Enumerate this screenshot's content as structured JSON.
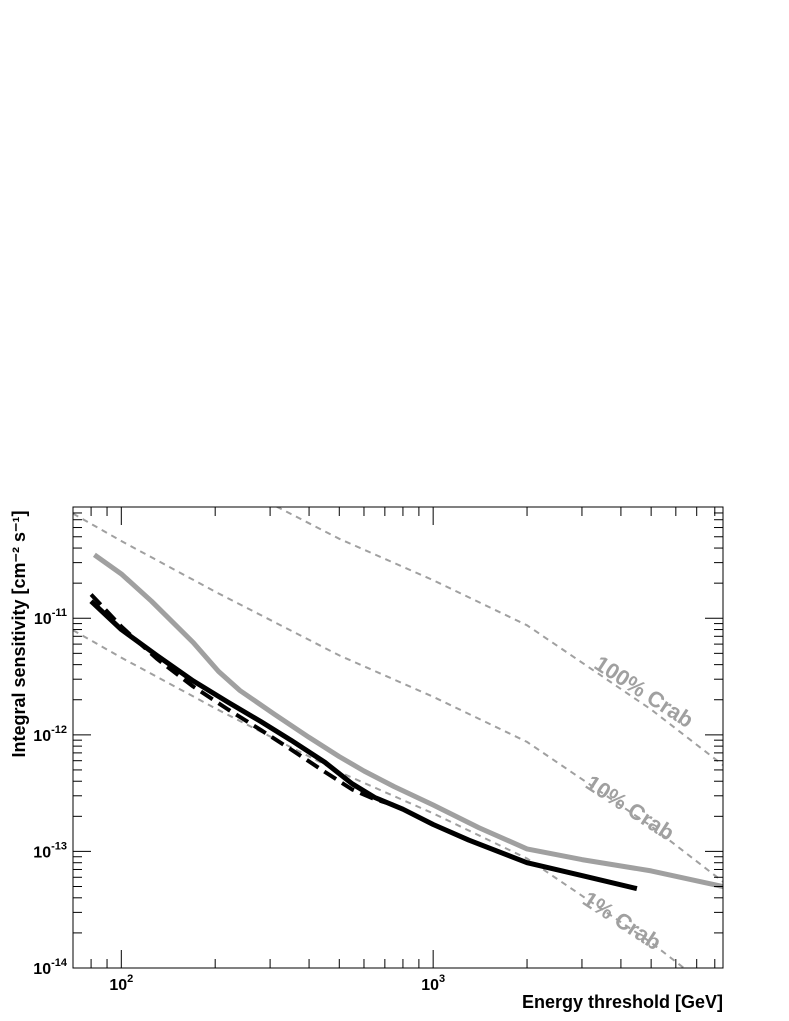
{
  "chart_data": {
    "type": "line",
    "xlabel": "Energy threshold [GeV]",
    "ylabel": "Integral sensitivity [cm⁻² s⁻¹]",
    "xscale": "log",
    "yscale": "log",
    "xlim": [
      70,
      8500
    ],
    "ylim": [
      1e-14,
      9e-11
    ],
    "x_tick_labels": [
      {
        "value": 100,
        "base": "10",
        "exp": "2"
      },
      {
        "value": 1000,
        "base": "10",
        "exp": "3"
      }
    ],
    "y_tick_labels": [
      {
        "value": 1e-14,
        "base": "10",
        "exp": "-14"
      },
      {
        "value": 1e-13,
        "base": "10",
        "exp": "-13"
      },
      {
        "value": 1e-12,
        "base": "10",
        "exp": "-12"
      },
      {
        "value": 1e-11,
        "base": "10",
        "exp": "-11"
      }
    ],
    "grid": false,
    "series": [
      {
        "color": "#a0a0a0",
        "style": "solid",
        "x": [
          82,
          100,
          125,
          170,
          205,
          240,
          310,
          400,
          500,
          600,
          750,
          1000,
          1400,
          2000,
          3000,
          5000,
          8500
        ],
        "y": [
          3.5e-11,
          2.4e-11,
          1.4e-11,
          6.2e-12,
          3.5e-12,
          2.4e-12,
          1.5e-12,
          9.5e-13,
          6.5e-13,
          4.9e-13,
          3.6e-13,
          2.5e-13,
          1.6e-13,
          1.05e-13,
          8.5e-14,
          6.8e-14,
          5e-14
        ]
      },
      {
        "color": "#000000",
        "style": "solid",
        "x": [
          80,
          100,
          130,
          170,
          220,
          280,
          350,
          450,
          550,
          650,
          800,
          1000,
          1300,
          2000,
          3000,
          4500
        ],
        "y": [
          1.4e-11,
          8e-12,
          4.8e-12,
          2.9e-12,
          1.9e-12,
          1.3e-12,
          9e-13,
          5.8e-13,
          3.8e-13,
          2.9e-13,
          2.3e-13,
          1.7e-13,
          1.25e-13,
          8e-14,
          6.2e-14,
          4.8e-14
        ]
      },
      {
        "color": "#000000",
        "style": "dashed",
        "x": [
          80,
          100,
          130,
          170,
          220,
          280,
          350,
          450,
          550,
          650,
          750
        ],
        "y": [
          1.6e-11,
          8.5e-12,
          4.5e-12,
          2.6e-12,
          1.65e-12,
          1.1e-12,
          7.5e-13,
          4.8e-13,
          3.4e-13,
          2.8e-13,
          2.5e-13
        ]
      }
    ],
    "reference_lines": [
      {
        "label": "100% Crab",
        "color": "#a0a0a0",
        "style": "dashed",
        "x": [
          70,
          100,
          200,
          500,
          1000,
          2000,
          5000,
          8500
        ],
        "y": [
          7.9e-10,
          4.6e-10,
          1.69e-10,
          4.8e-11,
          2.12e-11,
          8.7e-12,
          1.65e-12,
          5.5e-13
        ]
      },
      {
        "label": "10% Crab",
        "color": "#a0a0a0",
        "style": "dashed",
        "x": [
          70,
          100,
          200,
          500,
          1000,
          2000,
          5000,
          8500
        ],
        "y": [
          7.9e-11,
          4.6e-11,
          1.69e-11,
          4.8e-12,
          2.12e-12,
          8.7e-13,
          1.65e-13,
          5.5e-14
        ]
      },
      {
        "label": "1% Crab",
        "color": "#a0a0a0",
        "style": "dashed",
        "x": [
          70,
          100,
          200,
          500,
          1000,
          2000,
          5000,
          8500
        ],
        "y": [
          7.9e-12,
          4.6e-12,
          1.69e-12,
          4.8e-13,
          2.12e-13,
          8.7e-14,
          1.65e-14,
          5.5e-15
        ]
      }
    ]
  }
}
